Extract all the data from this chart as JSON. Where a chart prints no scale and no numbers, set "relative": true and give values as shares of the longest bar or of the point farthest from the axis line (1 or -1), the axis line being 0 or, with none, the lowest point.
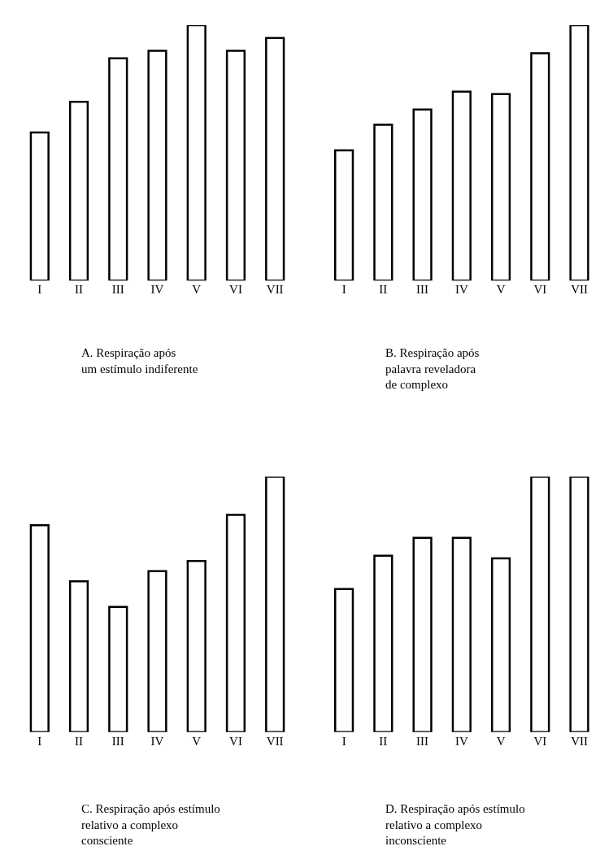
{
  "chart_data": [
    {
      "type": "bar",
      "title": "A. Respiração após\num estímulo indiferente",
      "categories": [
        "I",
        "II",
        "III",
        "IV",
        "V",
        "VI",
        "VII"
      ],
      "values": [
        0.58,
        0.7,
        0.87,
        0.9,
        1,
        0.9,
        0.95
      ],
      "color": "#ffffff",
      "relative": true
    },
    {
      "type": "bar",
      "title": "B. Respiração após\npalavra reveladora\nde complexo",
      "categories": [
        "I",
        "II",
        "III",
        "IV",
        "V",
        "VI",
        "VII"
      ],
      "values": [
        0.51,
        0.61,
        0.67,
        0.74,
        0.73,
        0.89,
        1
      ],
      "color": "#ffffff",
      "relative": true
    },
    {
      "type": "bar",
      "title": "C. Respiração após estímulo\nrelativo a complexo\nconsciente",
      "categories": [
        "I",
        "II",
        "III",
        "IV",
        "V",
        "VI",
        "VII"
      ],
      "values": [
        0.81,
        0.59,
        0.49,
        0.63,
        0.67,
        0.85,
        1
      ],
      "color": "#ffffff",
      "relative": true
    },
    {
      "type": "bar",
      "title": "D. Respiração após estímulo\nrelativo a complexo\ninconsciente",
      "categories": [
        "I",
        "II",
        "III",
        "IV",
        "V",
        "VI",
        "VII"
      ],
      "values": [
        0.56,
        0.69,
        0.76,
        0.76,
        0.68,
        1,
        1
      ],
      "color": "#ffffff",
      "relative": true
    }
  ]
}
